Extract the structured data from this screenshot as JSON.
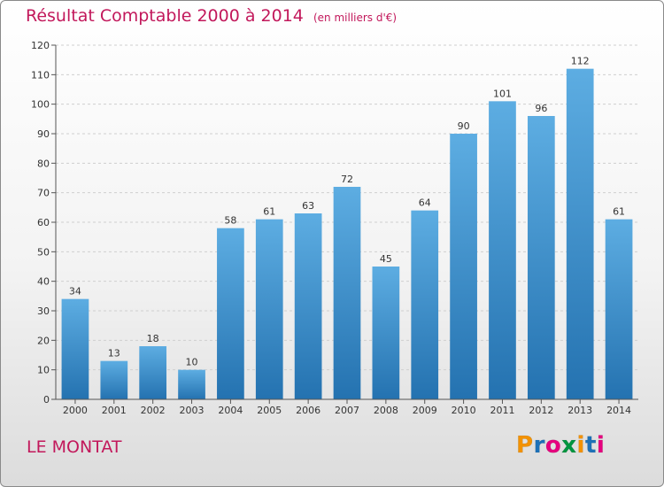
{
  "title": "Résultat Comptable 2000 à 2014",
  "unit": "(en milliers d'€)",
  "location": "LE MONTAT",
  "logo": {
    "letters": [
      "P",
      "r",
      "o",
      "x",
      "i",
      "t",
      "i"
    ],
    "colors": [
      "#f39200",
      "#1d71b8",
      "#e6007e",
      "#009640",
      "#f39200",
      "#1d71b8",
      "#e6007e"
    ]
  },
  "colors": {
    "title": "#c2185b",
    "bar_top": "#5dade2",
    "bar_bottom": "#2472b0",
    "grid": "#cfcfcf",
    "axis": "#555555"
  },
  "chart_data": {
    "type": "bar",
    "title": "Résultat Comptable 2000 à 2014",
    "xlabel": "",
    "ylabel": "",
    "ylim": [
      0,
      120
    ],
    "yticks": [
      0,
      10,
      20,
      30,
      40,
      50,
      60,
      70,
      80,
      90,
      100,
      110,
      120
    ],
    "grid": true,
    "categories": [
      "2000",
      "2001",
      "2002",
      "2003",
      "2004",
      "2005",
      "2006",
      "2007",
      "2008",
      "2009",
      "2010",
      "2011",
      "2012",
      "2013",
      "2014"
    ],
    "values": [
      34,
      13,
      18,
      10,
      58,
      61,
      63,
      72,
      45,
      64,
      90,
      101,
      96,
      112,
      61
    ]
  }
}
